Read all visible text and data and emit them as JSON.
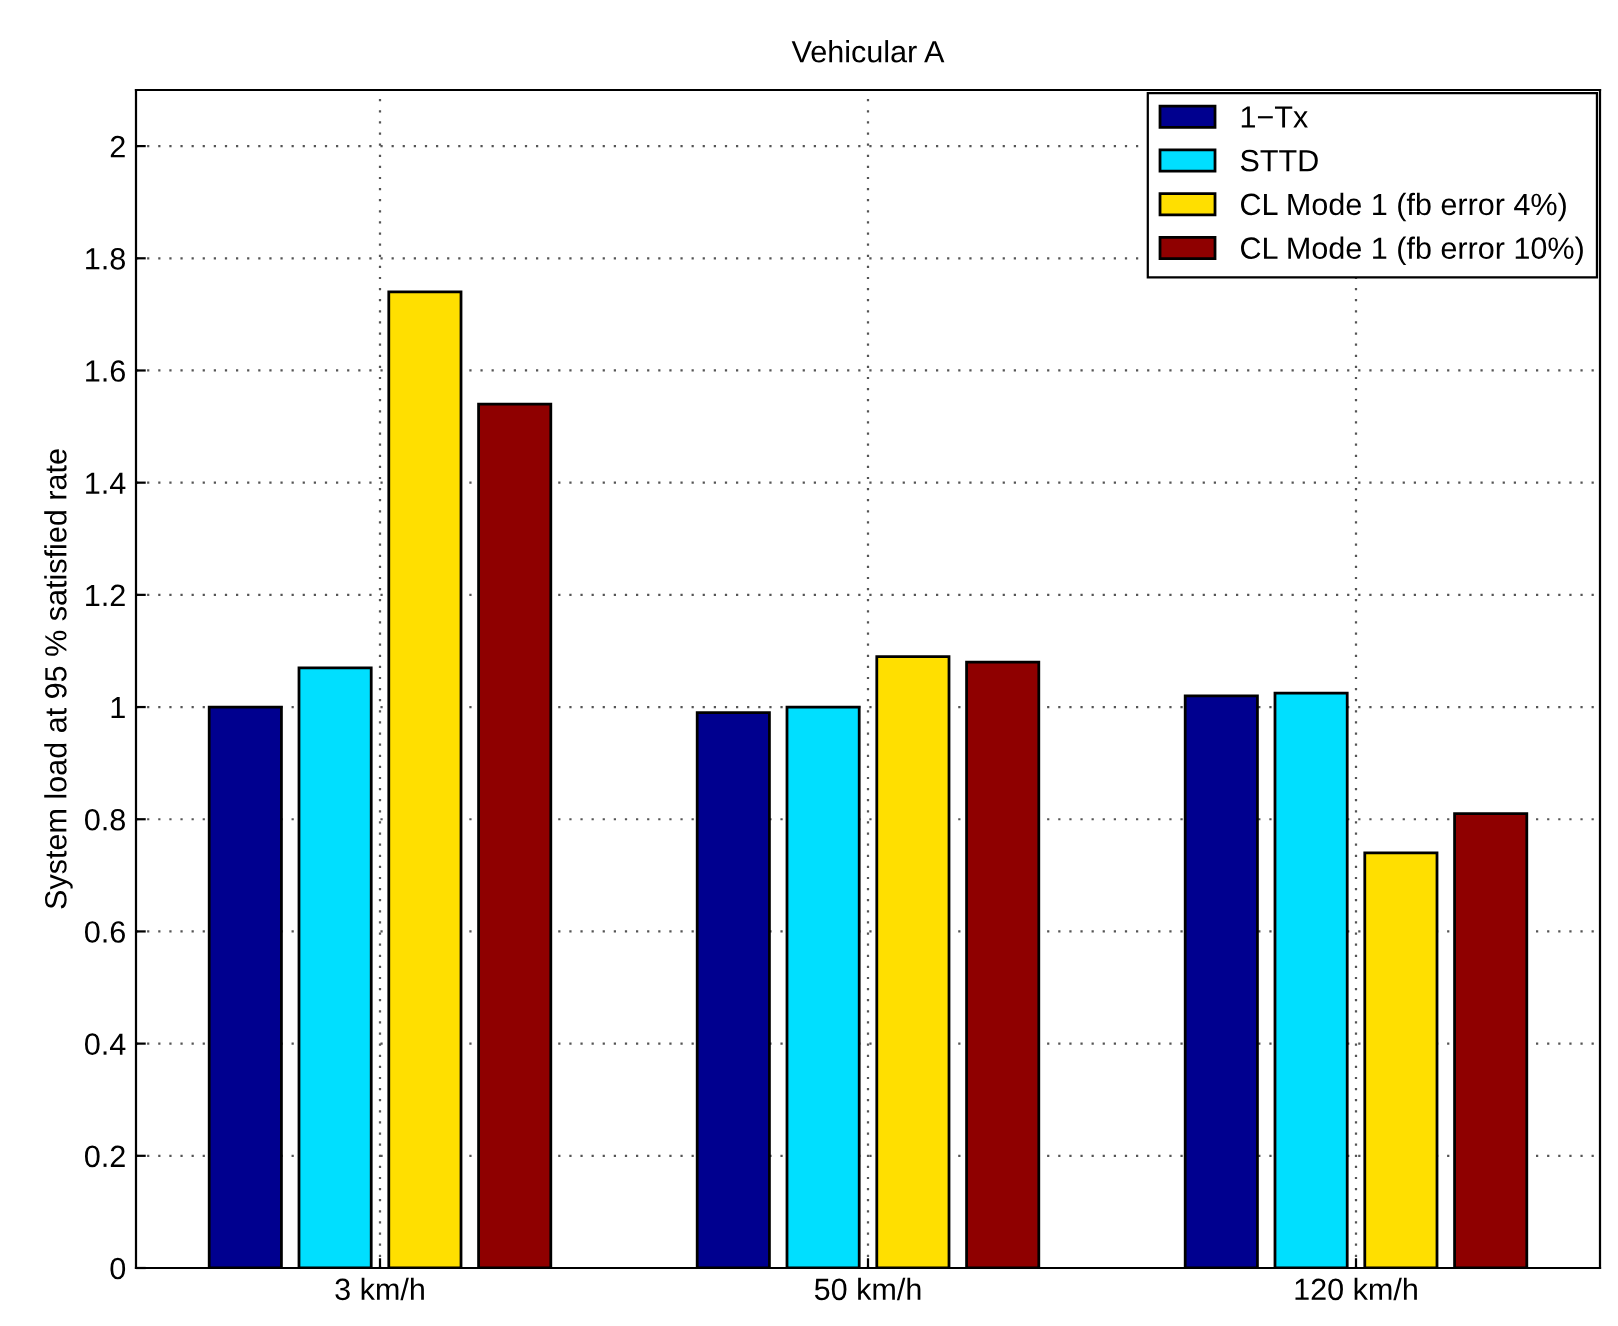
{
  "chart_data": {
    "type": "bar",
    "title": "Vehicular A",
    "ylabel": "System load at 95 % satisfied rate",
    "categories": [
      "3 km/h",
      "50 km/h",
      "120 km/h"
    ],
    "series": [
      {
        "name": "1−Tx",
        "color": "#00008f",
        "values": [
          1.0,
          0.99,
          1.02
        ]
      },
      {
        "name": "STTD",
        "color": "#00dfff",
        "values": [
          1.07,
          1.0,
          1.025
        ]
      },
      {
        "name": "CL Mode 1 (fb error 4%)",
        "color": "#ffdf00",
        "values": [
          1.74,
          1.09,
          0.74
        ]
      },
      {
        "name": "CL Mode 1 (fb error 10%)",
        "color": "#8f0000",
        "values": [
          1.54,
          1.08,
          0.81
        ]
      }
    ],
    "ylim": [
      0,
      2.1
    ],
    "yticks": [
      0,
      0.2,
      0.4,
      0.6,
      0.8,
      1,
      1.2,
      1.4,
      1.6,
      1.8,
      2
    ],
    "grid": true,
    "legend": "top right"
  }
}
